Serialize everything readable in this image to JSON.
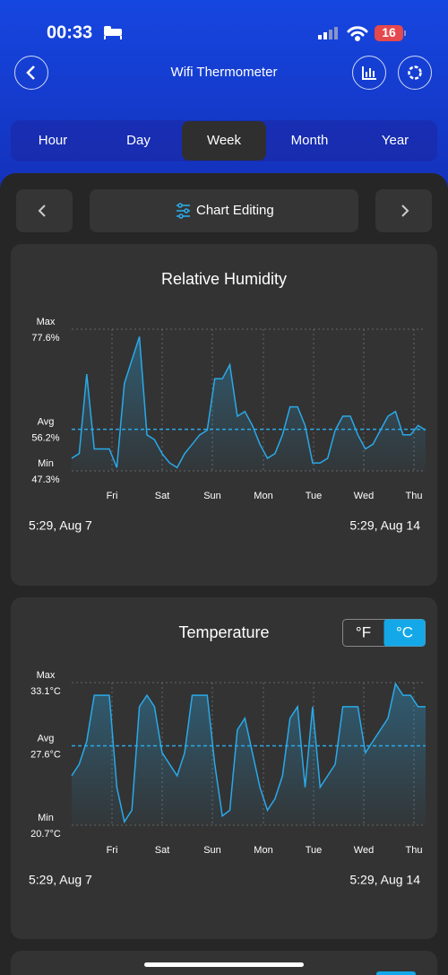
{
  "status_bar": {
    "time": "00:33",
    "battery": "16"
  },
  "header": {
    "title": "Wifi Thermometer"
  },
  "tabs": {
    "items": [
      "Hour",
      "Day",
      "Week",
      "Month",
      "Year"
    ],
    "active": "Week"
  },
  "toolbar": {
    "label": "Chart Editing"
  },
  "charts": [
    {
      "type": "line",
      "title": "Relative Humidity",
      "color": "#2aa9e8",
      "ytick_names": [
        "Min",
        "Avg",
        "Max"
      ],
      "yticks": [
        {
          "value": 47.3,
          "label": "47.3%"
        },
        {
          "value": 56.2,
          "label": "56.2%"
        },
        {
          "value": 77.6,
          "label": "77.6%"
        }
      ],
      "ylim": [
        47.3,
        77.6
      ],
      "categories": [
        "Fri",
        "Sat",
        "Sun",
        "Mon",
        "Tue",
        "Wed",
        "Thu"
      ],
      "start_label": "5:29,  Aug 7",
      "end_label": "5:29,  Aug 14",
      "values": [
        50,
        51,
        68,
        52,
        52,
        52,
        48,
        66,
        71,
        76,
        55,
        54,
        51,
        49,
        48,
        51,
        53,
        55,
        56,
        67,
        67,
        70,
        59,
        60,
        57,
        53,
        50,
        51,
        55,
        61,
        61,
        57,
        49,
        49,
        50,
        56,
        59,
        59,
        55,
        52,
        53,
        56,
        59,
        60,
        55,
        55,
        57,
        56
      ]
    },
    {
      "type": "line",
      "title": "Temperature",
      "color": "#2aa9e8",
      "units": [
        "°F",
        "°C"
      ],
      "active_unit": "°C",
      "ytick_names": [
        "Min",
        "Avg",
        "Max"
      ],
      "yticks": [
        {
          "value": 20.7,
          "label": "20.7°C"
        },
        {
          "value": 27.6,
          "label": "27.6°C"
        },
        {
          "value": 33.1,
          "label": "33.1°C"
        }
      ],
      "ylim": [
        20.7,
        33.1
      ],
      "categories": [
        "Fri",
        "Sat",
        "Sun",
        "Mon",
        "Tue",
        "Wed",
        "Thu"
      ],
      "start_label": "5:29,  Aug 7",
      "end_label": "5:29,  Aug 14",
      "values": [
        25,
        26,
        28,
        32,
        32,
        32,
        24,
        21,
        22,
        31,
        32,
        31,
        27,
        26,
        25,
        27,
        32,
        32,
        32,
        26,
        21.5,
        22,
        29,
        30,
        27,
        24,
        22,
        23,
        25,
        30,
        31,
        24,
        31,
        24,
        25,
        26,
        31,
        31,
        31,
        27,
        28,
        29,
        30,
        33,
        32,
        32,
        31,
        31
      ]
    }
  ]
}
